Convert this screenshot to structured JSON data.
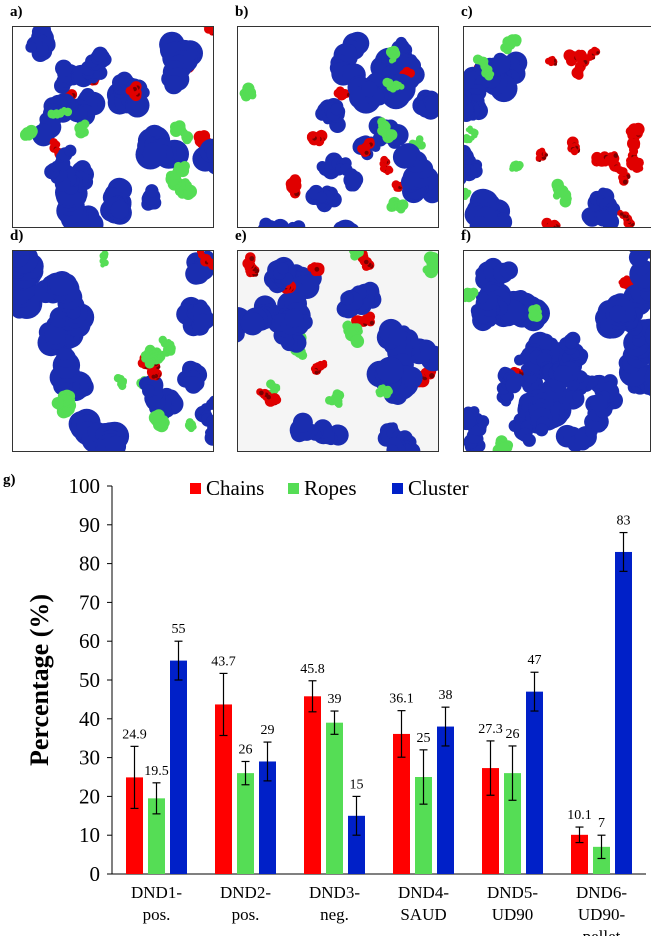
{
  "panels": [
    {
      "label": "a)",
      "seed": 11,
      "mix": [
        0.35,
        0.2,
        0.45
      ],
      "bg": "#ffffff"
    },
    {
      "label": "b)",
      "seed": 23,
      "mix": [
        0.35,
        0.2,
        0.45
      ],
      "bg": "#ffffff"
    },
    {
      "label": "c)",
      "seed": 37,
      "mix": [
        0.45,
        0.4,
        0.15
      ],
      "bg": "#ffffff"
    },
    {
      "label": "d)",
      "seed": 41,
      "mix": [
        0.35,
        0.25,
        0.4
      ],
      "bg": "#ffffff"
    },
    {
      "label": "e)",
      "seed": 53,
      "mix": [
        0.3,
        0.3,
        0.4
      ],
      "bg": "#f5f5f5"
    },
    {
      "label": "f)",
      "seed": 67,
      "mix": [
        0.1,
        0.07,
        0.83
      ],
      "bg": "#ffffff"
    }
  ],
  "colors": {
    "chains": "#e00000",
    "ropes": "#55dd55",
    "cluster": "#1a2db0",
    "chain_dark": "#7a0000"
  },
  "chart_data": {
    "type": "bar",
    "panel_label": "g)",
    "ylabel": "Percentage (%)",
    "ylim": [
      0,
      100
    ],
    "yticks": [
      0,
      10,
      20,
      30,
      40,
      50,
      60,
      70,
      80,
      90,
      100
    ],
    "categories": [
      [
        "DND1-",
        "pos."
      ],
      [
        "DND2-",
        "pos."
      ],
      [
        "DND3-",
        "neg."
      ],
      [
        "DND4-",
        "SAUD"
      ],
      [
        "DND5-",
        "UD90"
      ],
      [
        "DND6-",
        "UD90-",
        "pellet"
      ]
    ],
    "series": [
      {
        "name": "Chains",
        "color": "#ff0000",
        "values": [
          24.9,
          43.7,
          45.8,
          36.1,
          27.3,
          10.1
        ],
        "labels": [
          "24.9",
          "43.7",
          "45.8",
          "36.1",
          "27.3",
          "10.1"
        ],
        "errors": [
          8,
          8,
          4,
          6,
          7,
          2
        ]
      },
      {
        "name": "Ropes",
        "color": "#55dd55",
        "values": [
          19.5,
          26,
          39,
          25,
          26,
          7
        ],
        "labels": [
          "19.5",
          "26",
          "39",
          "25",
          "26",
          "7"
        ],
        "errors": [
          4,
          3,
          3,
          7,
          7,
          3
        ]
      },
      {
        "name": "Cluster",
        "color": "#0020c8",
        "values": [
          55,
          29,
          15,
          38,
          47,
          83
        ],
        "labels": [
          "55",
          "29",
          "15",
          "38",
          "47",
          "83"
        ],
        "errors": [
          5,
          5,
          5,
          5,
          5,
          5
        ]
      }
    ],
    "legend": "top"
  }
}
